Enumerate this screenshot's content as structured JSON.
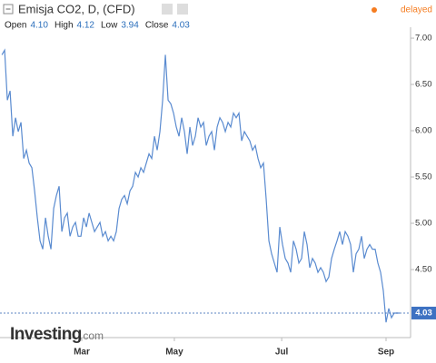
{
  "chart_data": {
    "type": "line",
    "title": "Emisja CO2, D, (CFD)",
    "status": "delayed",
    "ohlc": [
      {
        "label": "Open",
        "value": "4.10"
      },
      {
        "label": "High",
        "value": "4.12"
      },
      {
        "label": "Low",
        "value": "3.94"
      },
      {
        "label": "Close",
        "value": "4.03"
      }
    ],
    "logo": {
      "name": "Investing",
      "suffix": ".com"
    },
    "last_price": {
      "value": 4.03,
      "label": "4.03"
    },
    "color": "#5a8bd0",
    "values": [
      6.82,
      6.87,
      6.33,
      6.43,
      5.94,
      6.14,
      5.99,
      6.09,
      5.7,
      5.79,
      5.65,
      5.6,
      5.35,
      5.06,
      4.81,
      4.72,
      5.06,
      4.86,
      4.72,
      5.16,
      5.3,
      5.4,
      4.91,
      5.06,
      5.11,
      4.86,
      4.96,
      5.01,
      4.86,
      4.86,
      5.06,
      4.96,
      5.11,
      5.01,
      4.91,
      4.96,
      5.01,
      4.86,
      4.91,
      4.81,
      4.86,
      4.81,
      4.91,
      5.16,
      5.26,
      5.3,
      5.21,
      5.35,
      5.4,
      5.55,
      5.5,
      5.6,
      5.55,
      5.65,
      5.75,
      5.7,
      5.94,
      5.79,
      5.99,
      6.33,
      6.82,
      6.33,
      6.29,
      6.19,
      6.04,
      5.94,
      6.14,
      5.99,
      5.75,
      6.04,
      5.84,
      5.94,
      6.14,
      6.04,
      6.09,
      5.84,
      5.94,
      5.99,
      5.79,
      6.04,
      6.14,
      6.09,
      5.99,
      6.09,
      6.04,
      6.19,
      6.14,
      6.19,
      5.89,
      5.99,
      5.94,
      5.89,
      5.79,
      5.84,
      5.7,
      5.6,
      5.65,
      5.26,
      4.81,
      4.67,
      4.57,
      4.47,
      4.96,
      4.77,
      4.62,
      4.57,
      4.47,
      4.81,
      4.72,
      4.57,
      4.62,
      4.91,
      4.77,
      4.52,
      4.62,
      4.57,
      4.47,
      4.52,
      4.47,
      4.37,
      4.42,
      4.62,
      4.72,
      4.81,
      4.91,
      4.77,
      4.91,
      4.86,
      4.77,
      4.47,
      4.67,
      4.72,
      4.86,
      4.62,
      4.72,
      4.77,
      4.72,
      4.72,
      4.57,
      4.47,
      4.27,
      3.93,
      4.08,
      3.98,
      4.03,
      4.03,
      4.03
    ],
    "xlim": [
      -0.7,
      150
    ],
    "xticks": [
      {
        "value": 29.3,
        "label": "Mar"
      },
      {
        "value": 63.3,
        "label": "May"
      },
      {
        "value": 102.7,
        "label": "Jul"
      },
      {
        "value": 141,
        "label": "Sep"
      }
    ],
    "ylim": [
      3.765,
      7.118
    ],
    "yticks": [
      {
        "value": 4.5,
        "label": "4.50"
      },
      {
        "value": 5,
        "label": "5.00"
      },
      {
        "value": 5.5,
        "label": "5.50"
      },
      {
        "value": 6,
        "label": "6.00"
      },
      {
        "value": 6.5,
        "label": "6.50"
      },
      {
        "value": 7,
        "label": "7.00"
      }
    ]
  }
}
